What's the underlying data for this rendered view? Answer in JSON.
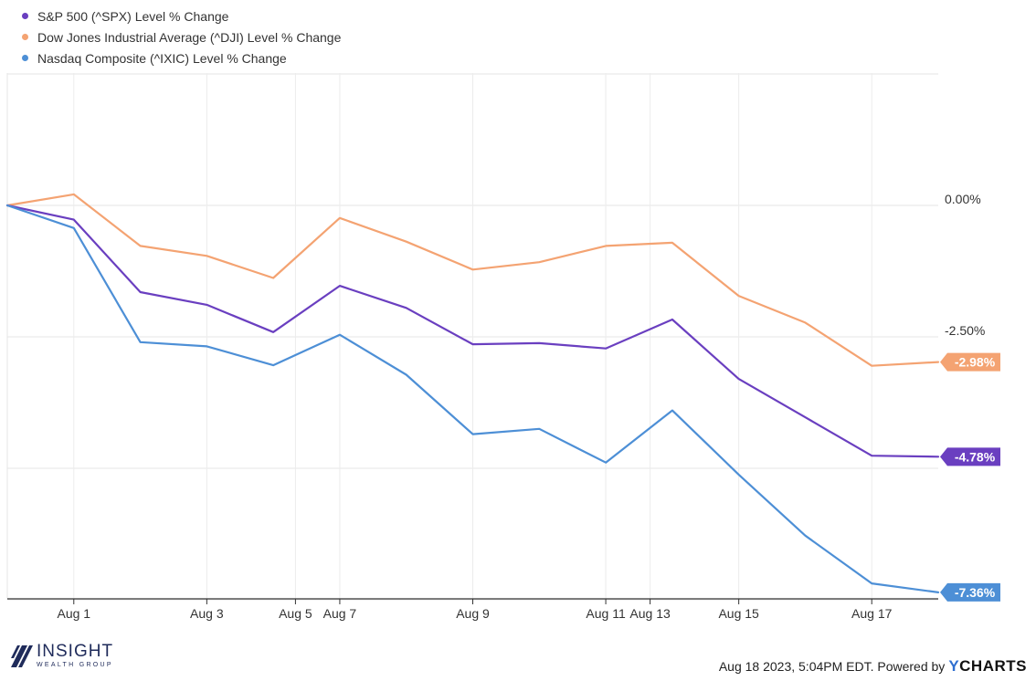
{
  "legend": [
    {
      "label": "S&P 500 (^SPX) Level % Change",
      "color": "#6a3fc0"
    },
    {
      "label": "Dow Jones Industrial Average (^DJI) Level % Change",
      "color": "#f4a372"
    },
    {
      "label": "Nasdaq Composite (^IXIC) Level % Change",
      "color": "#4d8fd6"
    }
  ],
  "chart_data": {
    "type": "line",
    "x": [
      "Jul 31",
      "Aug 1",
      "Aug 2",
      "Aug 3",
      "Aug 4",
      "Aug 7",
      "Aug 8",
      "Aug 9",
      "Aug 10",
      "Aug 11",
      "Aug 14",
      "Aug 15",
      "Aug 16",
      "Aug 17",
      "Aug 18"
    ],
    "x_tick_labels": [
      "Aug 1",
      "Aug 3",
      "Aug 5",
      "Aug 7",
      "Aug 9",
      "Aug 11",
      "Aug 13",
      "Aug 15",
      "Aug 17"
    ],
    "y_tick_labels": [
      "0.00%",
      "-2.50%"
    ],
    "ylim": [
      -7.5,
      2.5
    ],
    "grid": true,
    "legend_position": "top-left",
    "series": [
      {
        "name": "S&P 500 (^SPX) Level % Change",
        "color": "#6a3fc0",
        "values": [
          0.0,
          -0.27,
          -1.65,
          -1.89,
          -2.41,
          -1.53,
          -1.95,
          -2.64,
          -2.62,
          -2.72,
          -2.17,
          -3.3,
          -4.03,
          -4.76,
          -4.78
        ],
        "end_label": "-4.78%"
      },
      {
        "name": "Dow Jones Industrial Average (^DJI) Level % Change",
        "color": "#f4a372",
        "values": [
          0.0,
          0.21,
          -0.77,
          -0.96,
          -1.38,
          -0.24,
          -0.69,
          -1.22,
          -1.08,
          -0.77,
          -0.71,
          -1.72,
          -2.23,
          -3.05,
          -2.98
        ],
        "end_label": "-2.98%"
      },
      {
        "name": "Nasdaq Composite (^IXIC) Level % Change",
        "color": "#4d8fd6",
        "values": [
          0.0,
          -0.43,
          -2.6,
          -2.68,
          -3.04,
          -2.46,
          -3.22,
          -4.35,
          -4.25,
          -4.89,
          -3.9,
          -5.12,
          -6.28,
          -7.19,
          -7.36
        ],
        "end_label": "-7.36%"
      }
    ]
  },
  "footer": {
    "logo_main": "INSIGHT",
    "logo_sub": "WEALTH GROUP",
    "timestamp": "Aug 18 2023, 5:04PM EDT. Powered by",
    "brand_y": "Y",
    "brand_rest": "CHARTS"
  }
}
